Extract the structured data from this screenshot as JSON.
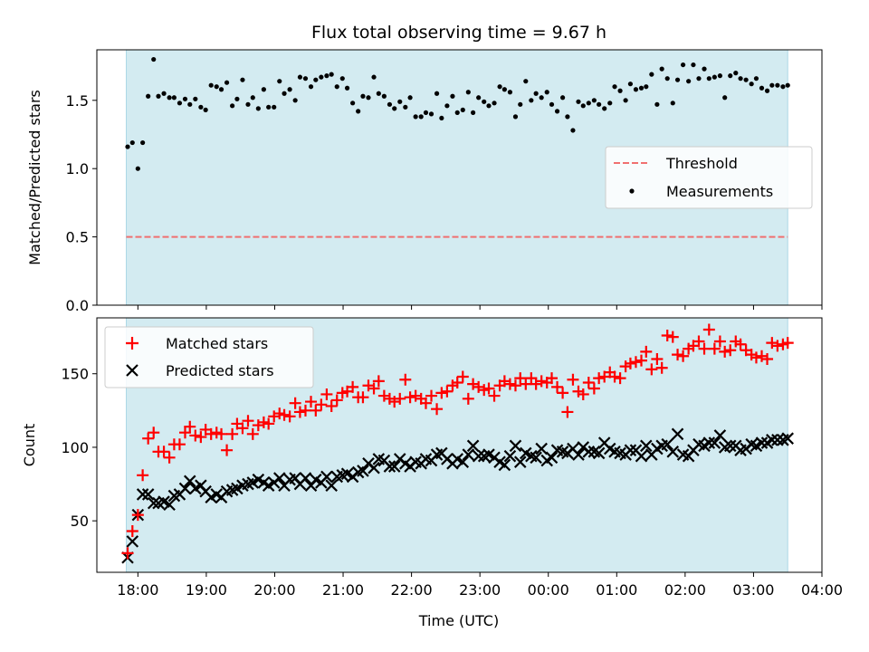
{
  "chart_data": [
    {
      "type": "scatter",
      "title": "Flux total observing time = 9.67 h",
      "xlabel": "",
      "ylabel": "Matched/Predicted stars",
      "xlim": [
        17.4,
        28.0
      ],
      "ylim": [
        0.0,
        1.87
      ],
      "y_ticks": [
        0.0,
        0.5,
        1.0,
        1.5
      ],
      "y_tick_labels": [
        "0.0",
        "0.5",
        "1.0",
        "1.5"
      ],
      "observing_window": [
        17.83,
        27.5
      ],
      "threshold": 0.5,
      "legend": {
        "position": "center-right",
        "entries": [
          "Threshold",
          "Measurements"
        ]
      },
      "colors": {
        "threshold": "#f07070",
        "measurements": "#000000",
        "window": "#d3ebf1",
        "window_edge": "#add8e6"
      },
      "series": [
        {
          "name": "Measurements",
          "x": [
            17.85,
            17.92,
            18.0,
            18.07,
            18.15,
            18.23,
            18.3,
            18.38,
            18.46,
            18.53,
            18.61,
            18.69,
            18.76,
            18.84,
            18.92,
            18.99,
            19.07,
            19.15,
            19.22,
            19.3,
            19.38,
            19.45,
            19.53,
            19.61,
            19.68,
            19.76,
            19.84,
            19.91,
            19.99,
            20.07,
            20.14,
            20.22,
            20.3,
            20.37,
            20.45,
            20.53,
            20.6,
            20.68,
            20.76,
            20.83,
            20.91,
            20.99,
            21.06,
            21.14,
            21.22,
            21.29,
            21.37,
            21.45,
            21.52,
            21.6,
            21.68,
            21.75,
            21.83,
            21.91,
            21.98,
            22.06,
            22.14,
            22.21,
            22.29,
            22.37,
            22.44,
            22.52,
            22.6,
            22.67,
            22.75,
            22.83,
            22.9,
            22.98,
            23.06,
            23.13,
            23.21,
            23.29,
            23.36,
            23.44,
            23.52,
            23.59,
            23.67,
            23.75,
            23.82,
            23.9,
            23.98,
            24.05,
            24.13,
            24.21,
            24.28,
            24.36,
            24.44,
            24.51,
            24.59,
            24.67,
            24.74,
            24.82,
            24.9,
            24.97,
            25.05,
            25.13,
            25.2,
            25.28,
            25.36,
            25.43,
            25.51,
            25.59,
            25.66,
            25.74,
            25.82,
            25.89,
            25.97,
            26.05,
            26.12,
            26.2,
            26.28,
            26.35,
            26.43,
            26.51,
            26.58,
            26.66,
            26.74,
            26.81,
            26.89,
            26.97,
            27.04,
            27.12,
            27.2,
            27.27,
            27.35,
            27.43,
            27.5
          ],
          "y": [
            1.16,
            1.19,
            1.0,
            1.19,
            1.53,
            1.8,
            1.53,
            1.55,
            1.52,
            1.52,
            1.48,
            1.51,
            1.47,
            1.51,
            1.45,
            1.43,
            1.61,
            1.6,
            1.58,
            1.63,
            1.46,
            1.51,
            1.65,
            1.47,
            1.52,
            1.44,
            1.58,
            1.45,
            1.45,
            1.64,
            1.55,
            1.58,
            1.5,
            1.67,
            1.66,
            1.6,
            1.65,
            1.67,
            1.68,
            1.69,
            1.6,
            1.66,
            1.59,
            1.48,
            1.42,
            1.53,
            1.52,
            1.67,
            1.55,
            1.53,
            1.47,
            1.44,
            1.49,
            1.45,
            1.52,
            1.38,
            1.38,
            1.41,
            1.4,
            1.55,
            1.37,
            1.46,
            1.53,
            1.41,
            1.43,
            1.56,
            1.41,
            1.52,
            1.49,
            1.46,
            1.48,
            1.6,
            1.58,
            1.56,
            1.38,
            1.47,
            1.64,
            1.5,
            1.55,
            1.52,
            1.56,
            1.47,
            1.42,
            1.52,
            1.38,
            1.28,
            1.49,
            1.46,
            1.48,
            1.5,
            1.47,
            1.44,
            1.48,
            1.6,
            1.57,
            1.5,
            1.62,
            1.58,
            1.59,
            1.6,
            1.69,
            1.47,
            1.73,
            1.66,
            1.48,
            1.65,
            1.76,
            1.64,
            1.76,
            1.66,
            1.73,
            1.66,
            1.67,
            1.68,
            1.52,
            1.68,
            1.7,
            1.66,
            1.65,
            1.62,
            1.66,
            1.59,
            1.57,
            1.61,
            1.61,
            1.6,
            1.61
          ]
        }
      ]
    },
    {
      "type": "scatter",
      "title": "",
      "xlabel": "Time (UTC)",
      "ylabel": "Count",
      "xlim": [
        17.4,
        28.0
      ],
      "ylim": [
        15,
        188
      ],
      "y_ticks": [
        50,
        100,
        150
      ],
      "y_tick_labels": [
        "50",
        "100",
        "150"
      ],
      "x_ticks": [
        18,
        19,
        20,
        21,
        22,
        23,
        24,
        25,
        26,
        27,
        28
      ],
      "x_tick_labels": [
        "18:00",
        "19:00",
        "20:00",
        "21:00",
        "22:00",
        "23:00",
        "00:00",
        "01:00",
        "02:00",
        "03:00",
        "04:00"
      ],
      "observing_window": [
        17.83,
        27.5
      ],
      "legend": {
        "position": "top-left",
        "entries": [
          "Matched stars",
          "Predicted stars"
        ]
      },
      "colors": {
        "matched": "#ff0000",
        "predicted": "#000000",
        "window": "#d3ebf1",
        "window_edge": "#add8e6"
      },
      "series": [
        {
          "name": "Matched stars",
          "marker": "plus",
          "x": [
            17.85,
            17.92,
            18.0,
            18.07,
            18.15,
            18.23,
            18.3,
            18.38,
            18.46,
            18.53,
            18.61,
            18.69,
            18.76,
            18.84,
            18.92,
            18.99,
            19.07,
            19.15,
            19.22,
            19.3,
            19.38,
            19.45,
            19.53,
            19.61,
            19.68,
            19.76,
            19.84,
            19.91,
            19.99,
            20.07,
            20.14,
            20.22,
            20.3,
            20.37,
            20.45,
            20.53,
            20.6,
            20.68,
            20.76,
            20.83,
            20.91,
            20.99,
            21.06,
            21.14,
            21.22,
            21.29,
            21.37,
            21.45,
            21.52,
            21.6,
            21.68,
            21.75,
            21.83,
            21.91,
            21.98,
            22.06,
            22.14,
            22.21,
            22.29,
            22.37,
            22.44,
            22.52,
            22.6,
            22.67,
            22.75,
            22.83,
            22.9,
            22.98,
            23.06,
            23.13,
            23.21,
            23.29,
            23.36,
            23.44,
            23.52,
            23.59,
            23.67,
            23.75,
            23.82,
            23.9,
            23.98,
            24.05,
            24.13,
            24.21,
            24.28,
            24.36,
            24.44,
            24.51,
            24.59,
            24.67,
            24.74,
            24.82,
            24.9,
            24.97,
            25.05,
            25.13,
            25.2,
            25.28,
            25.36,
            25.43,
            25.51,
            25.59,
            25.66,
            25.74,
            25.82,
            25.89,
            25.97,
            26.05,
            26.12,
            26.2,
            26.28,
            26.35,
            26.43,
            26.51,
            26.58,
            26.66,
            26.74,
            26.81,
            26.89,
            26.97,
            27.04,
            27.12,
            27.2,
            27.27,
            27.35,
            27.43,
            27.5
          ],
          "y": [
            28,
            43,
            54,
            81,
            106,
            110,
            97,
            97,
            93,
            102,
            102,
            110,
            114,
            108,
            107,
            112,
            109,
            110,
            109,
            98,
            109,
            116,
            113,
            118,
            109,
            115,
            117,
            116,
            121,
            123,
            122,
            121,
            130,
            124,
            125,
            131,
            125,
            129,
            136,
            128,
            132,
            137,
            138,
            141,
            134,
            134,
            142,
            140,
            145,
            135,
            133,
            131,
            133,
            146,
            134,
            135,
            133,
            130,
            135,
            126,
            137,
            138,
            142,
            144,
            148,
            133,
            143,
            141,
            139,
            140,
            135,
            142,
            145,
            143,
            142,
            147,
            143,
            147,
            143,
            145,
            144,
            147,
            141,
            137,
            124,
            146,
            138,
            136,
            144,
            140,
            147,
            148,
            151,
            148,
            147,
            155,
            157,
            158,
            159,
            165,
            153,
            160,
            154,
            176,
            175,
            163,
            162,
            167,
            169,
            172,
            167,
            180,
            167,
            172,
            165,
            166,
            172,
            170,
            166,
            163,
            161,
            162,
            160,
            171,
            169,
            170,
            171
          ]
        },
        {
          "name": "Predicted stars",
          "marker": "x",
          "x": [
            17.85,
            17.92,
            18.0,
            18.07,
            18.15,
            18.23,
            18.3,
            18.38,
            18.46,
            18.53,
            18.61,
            18.69,
            18.76,
            18.84,
            18.92,
            18.99,
            19.07,
            19.15,
            19.22,
            19.3,
            19.38,
            19.45,
            19.53,
            19.61,
            19.68,
            19.76,
            19.84,
            19.91,
            19.99,
            20.07,
            20.14,
            20.22,
            20.3,
            20.37,
            20.45,
            20.53,
            20.6,
            20.68,
            20.76,
            20.83,
            20.91,
            20.99,
            21.06,
            21.14,
            21.22,
            21.29,
            21.37,
            21.45,
            21.52,
            21.6,
            21.68,
            21.75,
            21.83,
            21.91,
            21.98,
            22.06,
            22.14,
            22.21,
            22.29,
            22.37,
            22.44,
            22.52,
            22.6,
            22.67,
            22.75,
            22.83,
            22.9,
            22.98,
            23.06,
            23.13,
            23.21,
            23.29,
            23.36,
            23.44,
            23.52,
            23.59,
            23.67,
            23.75,
            23.82,
            23.9,
            23.98,
            24.05,
            24.13,
            24.21,
            24.28,
            24.36,
            24.44,
            24.51,
            24.59,
            24.67,
            24.74,
            24.82,
            24.9,
            24.97,
            25.05,
            25.13,
            25.2,
            25.28,
            25.36,
            25.43,
            25.51,
            25.59,
            25.66,
            25.74,
            25.82,
            25.89,
            25.97,
            26.05,
            26.12,
            26.2,
            26.28,
            26.35,
            26.43,
            26.51,
            26.58,
            26.66,
            26.74,
            26.81,
            26.89,
            26.97,
            27.04,
            27.12,
            27.2,
            27.27,
            27.35,
            27.43,
            27.5
          ],
          "y": [
            25,
            36,
            54,
            68,
            68,
            62,
            62,
            63,
            61,
            67,
            68,
            72,
            77,
            72,
            74,
            70,
            66,
            68,
            66,
            70,
            71,
            72,
            74,
            75,
            76,
            78,
            76,
            74,
            76,
            79,
            74,
            78,
            79,
            75,
            79,
            74,
            78,
            76,
            80,
            74,
            80,
            81,
            82,
            80,
            83,
            84,
            89,
            86,
            92,
            91,
            87,
            87,
            92,
            89,
            87,
            90,
            89,
            92,
            91,
            95,
            96,
            92,
            89,
            92,
            90,
            95,
            101,
            94,
            94,
            95,
            93,
            90,
            88,
            94,
            101,
            90,
            96,
            94,
            93,
            99,
            91,
            93,
            98,
            97,
            96,
            99,
            95,
            100,
            97,
            97,
            96,
            103,
            99,
            97,
            96,
            95,
            98,
            98,
            94,
            101,
            95,
            99,
            101,
            102,
            97,
            109,
            95,
            94,
            98,
            102,
            101,
            103,
            103,
            108,
            100,
            101,
            101,
            98,
            99,
            102,
            101,
            103,
            103,
            105,
            105,
            105,
            106
          ]
        }
      ]
    }
  ]
}
